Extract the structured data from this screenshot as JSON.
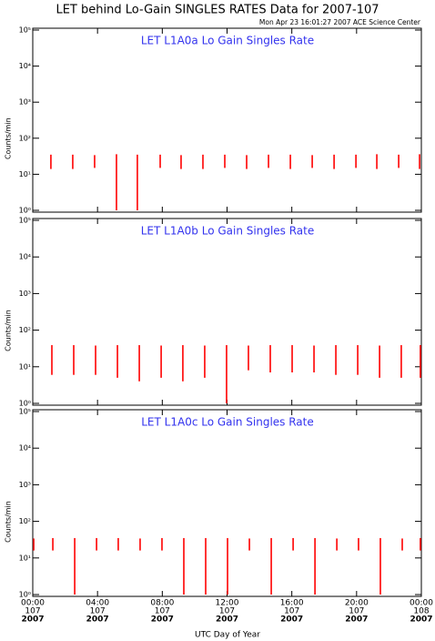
{
  "header": {
    "title": "LET behind Lo-Gain SINGLES RATES Data for 2007-107",
    "timestamp": "Mon Apr 23 16:01:27 2007 ACE Science Center"
  },
  "chart_data": [
    {
      "type": "spike",
      "title": "LET L1A0a Lo Gain Singles Rate",
      "ylabel": "Counts/min",
      "yscale": "log",
      "color": "#ff0000",
      "xlim": [
        0,
        24
      ],
      "xticks": [
        0,
        4,
        8,
        12,
        16,
        20,
        24
      ],
      "ylim": [
        1,
        100000
      ],
      "yticks": [
        {
          "value": 1,
          "label": "10⁰"
        },
        {
          "value": 10,
          "label": "10¹"
        },
        {
          "value": 100,
          "label": "10²"
        },
        {
          "value": 1000,
          "label": "10³"
        },
        {
          "value": 10000,
          "label": "10⁴"
        },
        {
          "value": 100000,
          "label": "10⁵"
        }
      ],
      "x": [
        1.12,
        2.47,
        3.82,
        5.17,
        6.46,
        7.87,
        9.16,
        10.51,
        11.86,
        13.21,
        14.56,
        15.91,
        17.26,
        18.61,
        19.96,
        21.25,
        22.6,
        23.89
      ],
      "low": [
        14,
        14,
        15,
        1,
        1,
        15,
        14,
        14,
        15,
        14,
        15,
        14,
        15,
        14,
        15,
        14,
        15,
        14
      ],
      "high": [
        35,
        35,
        34,
        36,
        35,
        35,
        34,
        35,
        35,
        34,
        35,
        35,
        34,
        35,
        35,
        36,
        35,
        36
      ]
    },
    {
      "type": "spike",
      "title": "LET L1A0b Lo Gain Singles Rate",
      "ylabel": "Counts/min",
      "yscale": "log",
      "color": "#ff0000",
      "xlim": [
        0,
        24
      ],
      "xticks": [
        0,
        4,
        8,
        12,
        16,
        20,
        24
      ],
      "ylim": [
        1,
        100000
      ],
      "yticks": [
        {
          "value": 1,
          "label": "10⁰"
        },
        {
          "value": 10,
          "label": "10¹"
        },
        {
          "value": 100,
          "label": "10²"
        },
        {
          "value": 1000,
          "label": "10³"
        },
        {
          "value": 10000,
          "label": "10⁴"
        },
        {
          "value": 100000,
          "label": "10⁵"
        }
      ],
      "x": [
        1.18,
        2.53,
        3.88,
        5.23,
        6.58,
        7.93,
        9.27,
        10.62,
        11.97,
        13.32,
        14.67,
        16.02,
        17.37,
        18.72,
        20.07,
        21.42,
        22.76,
        23.94
      ],
      "low": [
        6,
        6,
        6,
        5,
        4,
        5,
        4,
        5,
        1,
        8,
        7,
        7,
        7,
        6,
        6,
        5,
        5,
        5
      ],
      "high": [
        39,
        39,
        38,
        39,
        39,
        38,
        39,
        38,
        39,
        38,
        39,
        39,
        38,
        39,
        39,
        38,
        39,
        39
      ]
    },
    {
      "type": "spike",
      "title": "LET L1A0c Lo Gain Singles Rate",
      "ylabel": "Counts/min",
      "yscale": "log",
      "color": "#ff0000",
      "xlabel": "UTC Day of Year",
      "xlim": [
        0,
        24
      ],
      "xticks": [
        {
          "value": 0,
          "label": "00:00"
        },
        {
          "value": 4,
          "label": "04:00"
        },
        {
          "value": 8,
          "label": "08:00"
        },
        {
          "value": 12,
          "label": "12:00"
        },
        {
          "value": 16,
          "label": "16:00"
        },
        {
          "value": 20,
          "label": "20:00"
        },
        {
          "value": 24,
          "label": "00:00"
        }
      ],
      "xtick_days": [
        "107",
        "107",
        "107",
        "107",
        "107",
        "107",
        "108"
      ],
      "xtick_years": [
        "2007",
        "2007",
        "2007",
        "2007",
        "2007",
        "2007",
        "2007"
      ],
      "ylim": [
        1,
        100000
      ],
      "yticks": [
        {
          "value": 1,
          "label": "10⁰"
        },
        {
          "value": 10,
          "label": "10¹"
        },
        {
          "value": 100,
          "label": "10²"
        },
        {
          "value": 1000,
          "label": "10³"
        },
        {
          "value": 10000,
          "label": "10⁴"
        },
        {
          "value": 100000,
          "label": "10⁵"
        }
      ],
      "x": [
        0.06,
        1.24,
        2.59,
        3.94,
        5.28,
        6.63,
        7.98,
        9.33,
        10.68,
        12.03,
        13.38,
        14.73,
        16.08,
        17.43,
        18.78,
        20.12,
        21.47,
        22.82,
        23.94
      ],
      "low": [
        16,
        16,
        1,
        16,
        16,
        16,
        16,
        1,
        1,
        1,
        16,
        1,
        16,
        1,
        16,
        16,
        1,
        16,
        16
      ],
      "high": [
        34,
        35,
        35,
        35,
        35,
        34,
        35,
        35,
        35,
        35,
        34,
        35,
        35,
        35,
        34,
        35,
        35,
        34,
        35
      ]
    }
  ]
}
